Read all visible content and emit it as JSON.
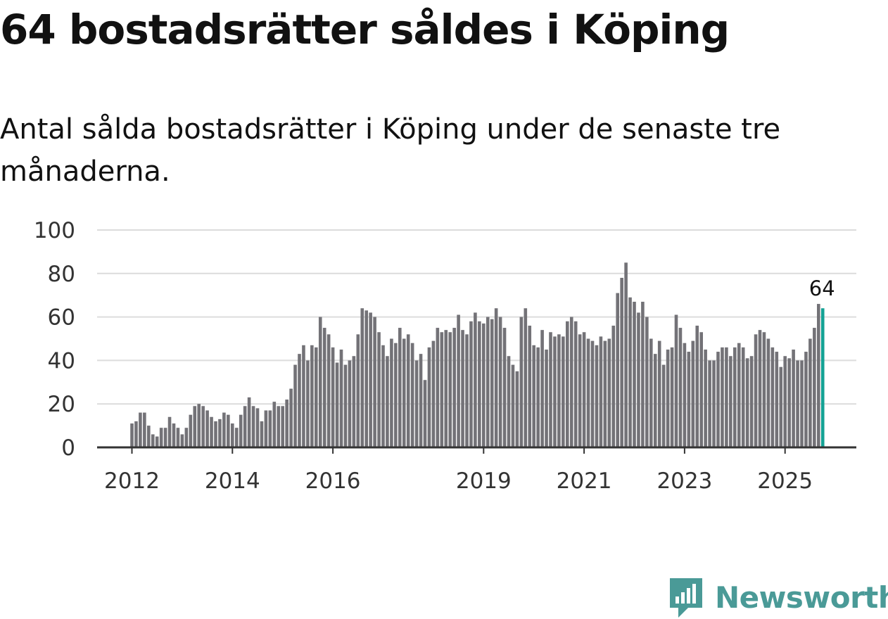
{
  "title": "64 bostadsrätter såldes i Köping",
  "subtitle": "Antal sålda bostadsrätter i Köping under de senaste tre månaderna.",
  "brand": {
    "name": "Newsworthy",
    "color": "#4a9a97",
    "icon": "newsworthy-logo-icon"
  },
  "colors": {
    "bar": "#737277",
    "highlight": "#14a295",
    "grid": "#dcdcdc",
    "axis": "#333333"
  },
  "chart_data": {
    "type": "bar",
    "title": "64 bostadsrätter såldes i Köping",
    "xlabel": "",
    "ylabel": "",
    "ylim": [
      0,
      100
    ],
    "yticks": [
      0,
      20,
      40,
      60,
      80,
      100
    ],
    "y_tick_labels": [
      "0",
      "20",
      "40",
      "60",
      "80",
      "100"
    ],
    "x_tick_labels": [
      "2012",
      "2014",
      "2016",
      "2019",
      "2021",
      "2023",
      "2025"
    ],
    "x_tick_indices": [
      0,
      24,
      48,
      84,
      108,
      132,
      156
    ],
    "start": "2012-01",
    "grid": true,
    "highlight_label": "64",
    "values": [
      11,
      12,
      16,
      16,
      10,
      6,
      5,
      9,
      9,
      14,
      11,
      9,
      6,
      9,
      15,
      19,
      20,
      19,
      17,
      14,
      12,
      13,
      16,
      15,
      11,
      9,
      15,
      19,
      23,
      19,
      18,
      12,
      17,
      17,
      21,
      19,
      19,
      22,
      27,
      38,
      43,
      47,
      40,
      47,
      46,
      60,
      55,
      52,
      46,
      39,
      45,
      38,
      40,
      42,
      52,
      64,
      63,
      62,
      60,
      53,
      47,
      42,
      50,
      48,
      55,
      50,
      52,
      48,
      40,
      43,
      31,
      46,
      49,
      55,
      53,
      54,
      53,
      55,
      61,
      54,
      52,
      58,
      62,
      58,
      57,
      60,
      59,
      64,
      60,
      55,
      42,
      38,
      35,
      60,
      64,
      56,
      47,
      46,
      54,
      45,
      53,
      51,
      52,
      51,
      58,
      60,
      58,
      52,
      53,
      50,
      49,
      47,
      51,
      49,
      50,
      56,
      71,
      78,
      85,
      69,
      67,
      62,
      67,
      60,
      50,
      43,
      49,
      38,
      45,
      46,
      61,
      55,
      48,
      44,
      49,
      56,
      53,
      45,
      40,
      40,
      44,
      46,
      46,
      42,
      46,
      48,
      46,
      41,
      42,
      52,
      54,
      53,
      50,
      46,
      44,
      37,
      42,
      41,
      45,
      40,
      40,
      44,
      50,
      55,
      66,
      64
    ]
  }
}
